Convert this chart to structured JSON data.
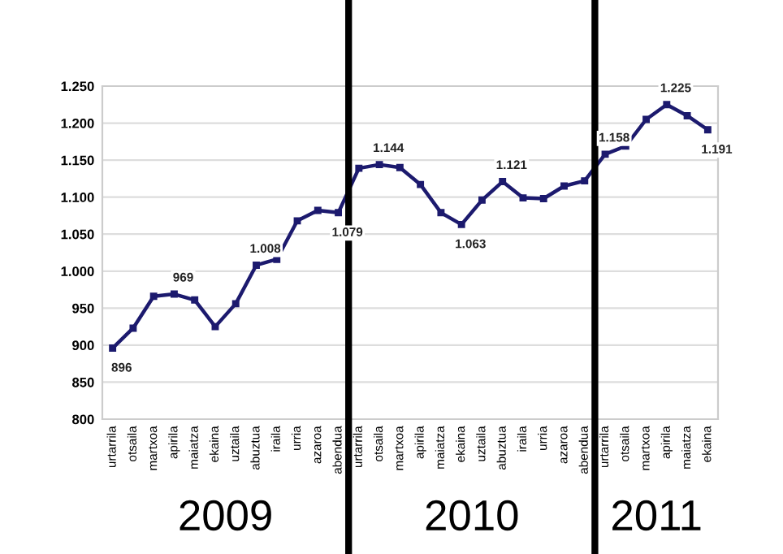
{
  "chart_data": {
    "type": "line",
    "categories": [
      "urtarrila",
      "otsaila",
      "martxoa",
      "apirila",
      "maiatza",
      "ekaina",
      "uztaila",
      "abuztua",
      "iraila",
      "urria",
      "azaroa",
      "abendua",
      "urtarrila",
      "otsaila",
      "martxoa",
      "apirila",
      "maiatza",
      "ekaina",
      "uztaila",
      "abuztua",
      "iraila",
      "urria",
      "azaroa",
      "abendua",
      "urtarrila",
      "otsaila",
      "martxoa",
      "apirila",
      "maiatza",
      "ekaina"
    ],
    "series": [
      {
        "color": "#1c1a6e",
        "values": [
          896,
          923,
          966,
          969,
          961,
          925,
          956,
          1008,
          1016,
          1068,
          1082,
          1079,
          1139,
          1144,
          1140,
          1117,
          1079,
          1063,
          1096,
          1121,
          1099,
          1098,
          1115,
          1122,
          1158,
          1169,
          1205,
          1225,
          1210,
          1191
        ],
        "value_labels": [
          "896",
          null,
          null,
          "969",
          null,
          null,
          null,
          "1.008",
          null,
          null,
          null,
          "1.079",
          null,
          "1.144",
          null,
          null,
          null,
          "1.063",
          null,
          "1.121",
          null,
          null,
          null,
          null,
          "1.158",
          null,
          null,
          "1.225",
          null,
          "1.191"
        ]
      }
    ],
    "ylim": [
      800,
      1250
    ],
    "yticks": [
      {
        "value": 800,
        "label": "800"
      },
      {
        "value": 850,
        "label": "850"
      },
      {
        "value": 900,
        "label": "900"
      },
      {
        "value": 950,
        "label": "950"
      },
      {
        "value": 1000,
        "label": "1.000"
      },
      {
        "value": 1050,
        "label": "1.050"
      },
      {
        "value": 1100,
        "label": "1.100"
      },
      {
        "value": 1150,
        "label": "1.150"
      },
      {
        "value": 1200,
        "label": "1.200"
      },
      {
        "value": 1250,
        "label": "1.250"
      }
    ],
    "grid": "y",
    "marker": "square",
    "line_style": "solid",
    "annotations": [
      "2009",
      "2010",
      "2011"
    ]
  }
}
